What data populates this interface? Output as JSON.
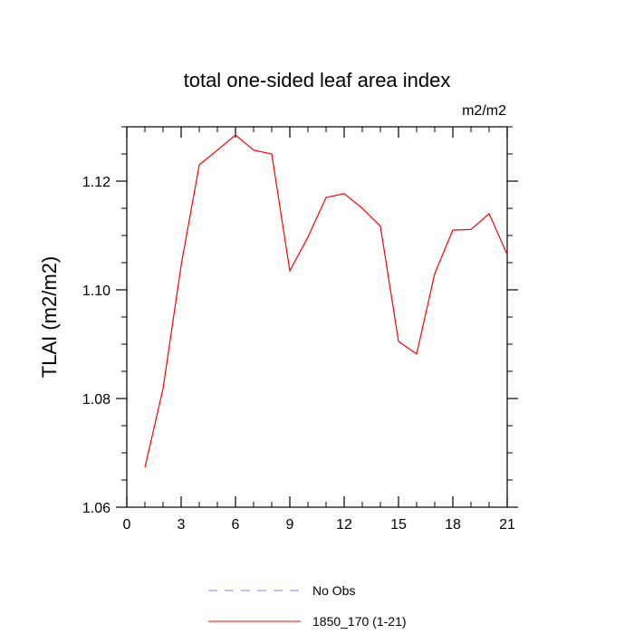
{
  "chart_data": {
    "type": "line",
    "title": "total one-sided leaf area index",
    "units_label": "m2/m2",
    "ylabel": "TLAI  (m2/m2)",
    "xlabel": "",
    "xlim": [
      0,
      21
    ],
    "ylim": [
      1.06,
      1.13
    ],
    "x_major_ticks": [
      0,
      3,
      6,
      9,
      12,
      15,
      18,
      21
    ],
    "x_tick_labels": [
      "0",
      "3",
      "6",
      "9",
      "12",
      "15",
      "18",
      "21"
    ],
    "y_major_ticks": [
      1.06,
      1.08,
      1.1,
      1.12
    ],
    "y_tick_labels": [
      "1.06",
      "1.08",
      "1.10",
      "1.12"
    ],
    "grid": false,
    "legend_position": "bottom-center",
    "series": [
      {
        "name": "1850_170 (1-21)",
        "color": "#ff0000",
        "dash": "solid",
        "x": [
          1,
          2,
          3,
          4,
          5,
          6,
          7,
          8,
          9,
          10,
          11,
          12,
          13,
          14,
          15,
          16,
          17,
          18,
          19,
          20,
          21
        ],
        "y": [
          1.0673,
          1.0818,
          1.1045,
          1.123,
          1.1257,
          1.1285,
          1.1257,
          1.125,
          1.1035,
          1.1097,
          1.117,
          1.1177,
          1.115,
          1.1117,
          1.0905,
          1.0882,
          1.103,
          1.111,
          1.1111,
          1.114,
          1.1065
        ]
      }
    ],
    "legend": [
      {
        "name": "No Obs",
        "color": "#8080ff",
        "dash": "dashed"
      },
      {
        "name": "1850_170 (1-21)",
        "color": "#ff0000",
        "dash": "solid"
      }
    ]
  }
}
